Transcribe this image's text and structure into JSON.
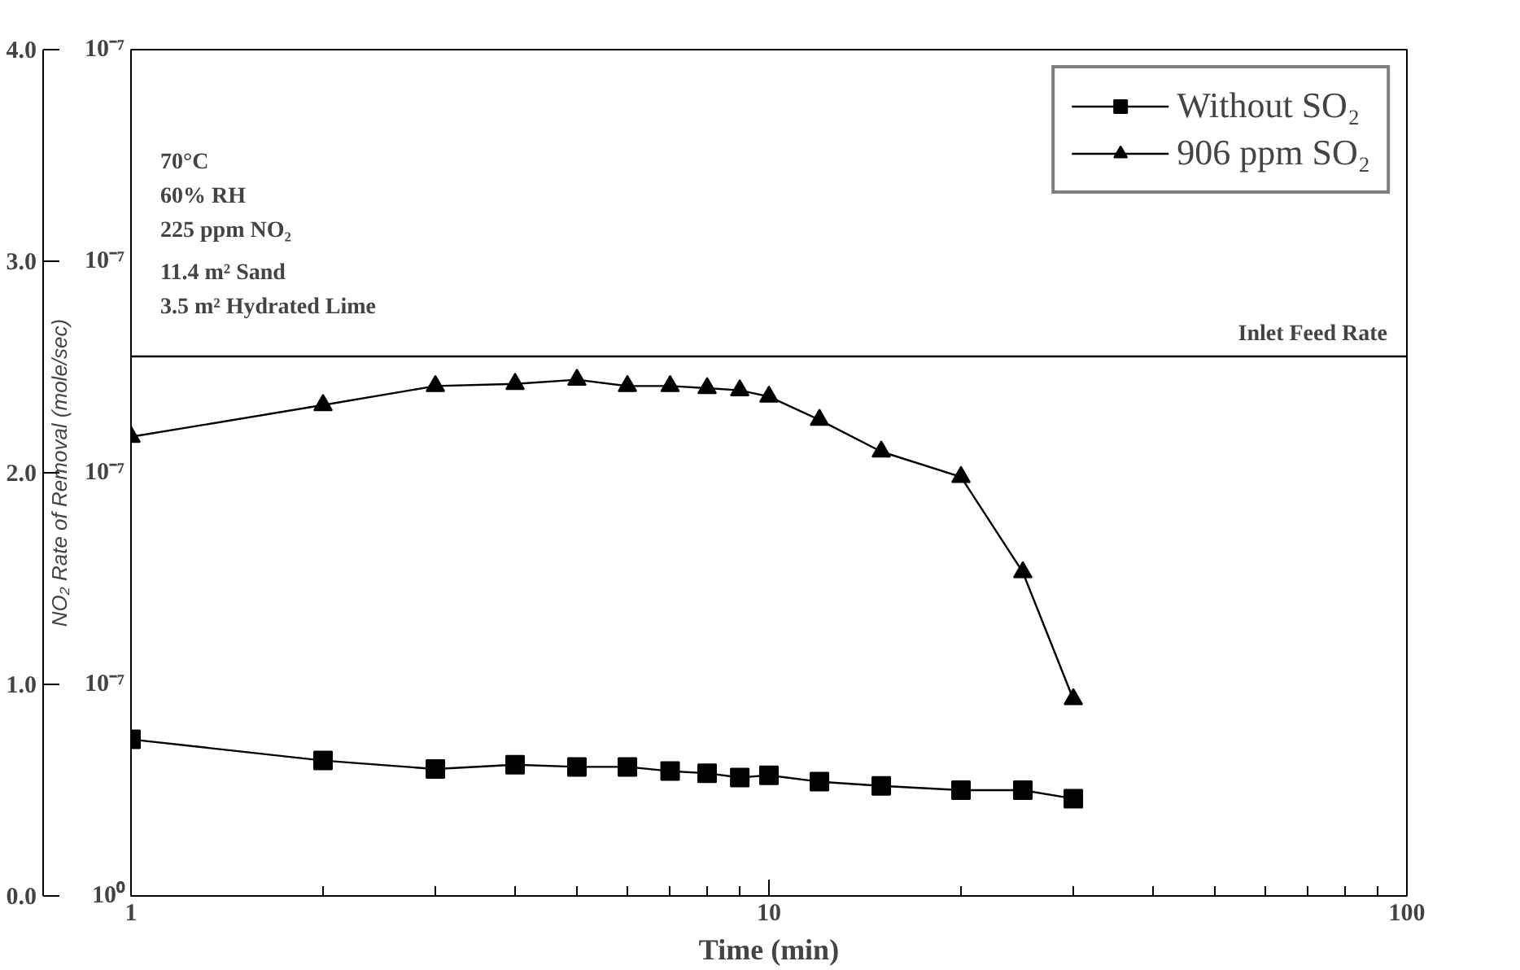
{
  "chart_data": {
    "type": "line",
    "xlabel": "Time (min)",
    "ylabel": "NO₂ Rate of Removal (mole/sec)",
    "x": [
      1,
      2,
      3,
      4,
      5,
      6,
      7,
      8,
      9,
      10,
      12,
      15,
      20,
      25,
      30
    ],
    "series": [
      {
        "name": "Without SO₂",
        "color": "#000000",
        "marker": "square",
        "values": [
          0.74,
          0.64,
          0.6,
          0.62,
          0.61,
          0.61,
          0.59,
          0.58,
          0.56,
          0.57,
          0.54,
          0.52,
          0.5,
          0.5,
          0.46
        ]
      },
      {
        "name": "906 ppm SO₂",
        "color": "#000000",
        "marker": "triangle",
        "values": [
          2.17,
          2.32,
          2.41,
          2.42,
          2.44,
          2.41,
          2.41,
          2.4,
          2.39,
          2.36,
          2.25,
          2.1,
          1.98,
          1.53,
          0.93
        ]
      }
    ],
    "log": "x",
    "xlim": [
      1,
      100
    ],
    "xticks": [
      1,
      10,
      100
    ],
    "ylim": [
      0,
      4
    ],
    "yticks": [
      {
        "value": 0,
        "label": "0.0"
      },
      {
        "value": 1,
        "label": "1.0"
      },
      {
        "value": 2,
        "label": "2.0"
      },
      {
        "value": 3,
        "label": "3.0"
      },
      {
        "value": 4,
        "label": "4.0"
      }
    ],
    "ref_lines": [
      {
        "axis": "y",
        "value": 2.55,
        "label": "Inlet Feed Rate"
      }
    ],
    "annotations": [
      "70°C",
      "60% RH",
      "225 ppm NO₂",
      "11.4 m² Sand",
      "3.5 m² Hydrated Lime",
      "10⁰",
      "10⁻⁷",
      "10⁻⁷",
      "10⁻⁷",
      "10⁻⁷"
    ],
    "legend": "top right",
    "grid": false
  }
}
